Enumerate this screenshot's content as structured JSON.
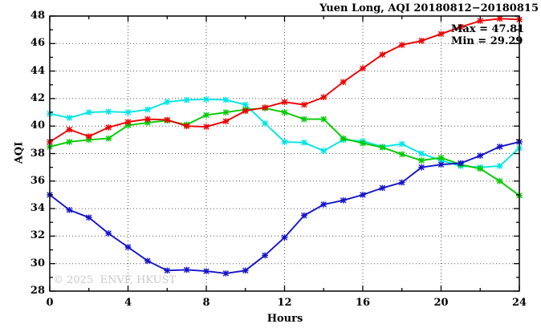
{
  "title": "Yuen Long, AQI 20180812−20180815",
  "annotation": {
    "max_label": "Max = 47.81",
    "min_label": "Min = 29.29"
  },
  "watermark": "© 2025  ENVF, HKUST",
  "chart_data": {
    "type": "line",
    "title": "Yuen Long, AQI 20180812−20180815",
    "xlabel": "Hours",
    "ylabel": "AQI",
    "xlim": [
      0,
      24
    ],
    "ylim": [
      28,
      48
    ],
    "x_major_ticks": [
      0,
      4,
      8,
      12,
      16,
      20,
      24
    ],
    "x_minor_ticks": [
      2,
      6,
      10,
      14,
      18,
      22
    ],
    "y_major_ticks": [
      28,
      30,
      32,
      34,
      36,
      38,
      40,
      42,
      44,
      46,
      48
    ],
    "y_minor_ticks": [
      29,
      31,
      33,
      35,
      37,
      39,
      41,
      43,
      45,
      47
    ],
    "grid": "dotted",
    "legend": "none",
    "marker": "star",
    "max_value": 47.81,
    "min_value": 29.29,
    "x": [
      0,
      1,
      2,
      3,
      4,
      5,
      6,
      7,
      8,
      9,
      10,
      11,
      12,
      13,
      14,
      15,
      16,
      17,
      18,
      19,
      20,
      21,
      22,
      23,
      24
    ],
    "series": [
      {
        "name": "cyan-series",
        "color": "#00e5e5",
        "values": [
          40.9,
          40.6,
          41.0,
          41.05,
          41.0,
          41.2,
          41.75,
          41.9,
          41.95,
          41.9,
          41.55,
          40.2,
          38.85,
          38.8,
          38.2,
          39.0,
          38.9,
          38.5,
          38.7,
          38.0,
          37.5,
          37.1,
          37.0,
          37.1,
          38.4
        ]
      },
      {
        "name": "green-series",
        "color": "#00cc00",
        "values": [
          38.5,
          38.85,
          39.0,
          39.1,
          40.05,
          40.25,
          40.4,
          40.1,
          40.8,
          41.0,
          41.2,
          41.3,
          41.0,
          40.5,
          40.5,
          39.1,
          38.75,
          38.45,
          37.95,
          37.5,
          37.7,
          37.2,
          36.9,
          36.0,
          34.95
        ]
      },
      {
        "name": "red-series",
        "color": "#ee0000",
        "values": [
          38.85,
          39.75,
          39.25,
          39.9,
          40.3,
          40.5,
          40.45,
          40.0,
          39.95,
          40.35,
          41.1,
          41.35,
          41.75,
          41.55,
          42.1,
          43.2,
          44.2,
          45.2,
          45.9,
          46.2,
          46.7,
          47.2,
          47.65,
          47.81,
          47.75
        ]
      },
      {
        "name": "blue-series",
        "color": "#1414cc",
        "values": [
          35.0,
          33.9,
          33.35,
          32.2,
          31.2,
          30.2,
          29.5,
          29.55,
          29.45,
          29.29,
          29.5,
          30.6,
          31.9,
          33.5,
          34.3,
          34.6,
          35.0,
          35.5,
          35.9,
          37.0,
          37.2,
          37.3,
          37.85,
          38.5,
          38.85
        ]
      }
    ]
  }
}
